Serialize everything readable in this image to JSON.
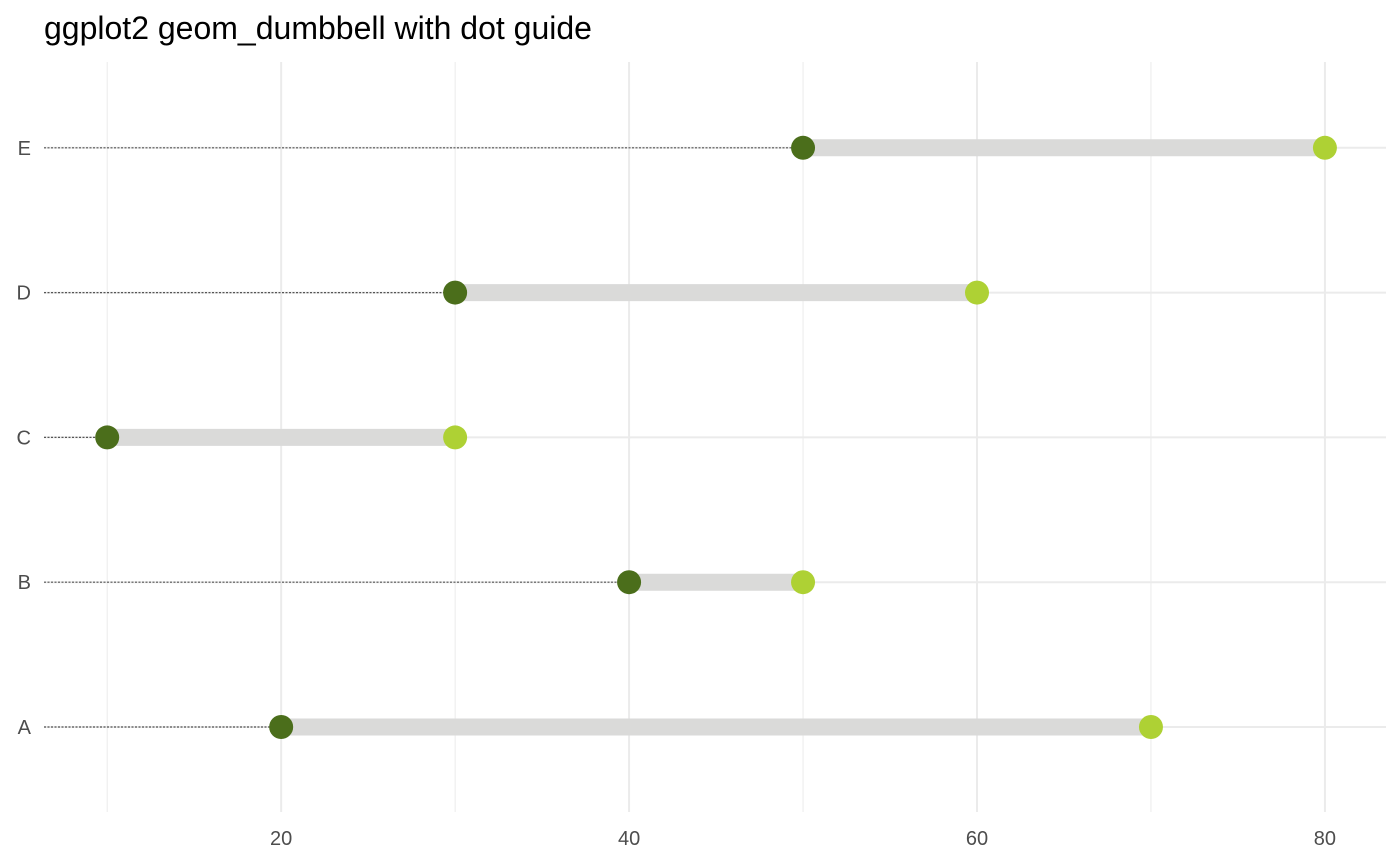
{
  "chart_data": {
    "type": "dumbbell",
    "title": "ggplot2 geom_dumbbell with dot guide",
    "xlabel": "",
    "ylabel": "",
    "categories": [
      "A",
      "B",
      "C",
      "D",
      "E"
    ],
    "series": [
      {
        "start": 20,
        "end": 70
      },
      {
        "start": 40,
        "end": 50
      },
      {
        "start": 10,
        "end": 30
      },
      {
        "start": 30,
        "end": 60
      },
      {
        "start": 50,
        "end": 80
      }
    ],
    "x_ticks": [
      20,
      40,
      60,
      80
    ],
    "xlim": [
      6.5,
      83.5
    ],
    "grid": true,
    "dot_guide": true,
    "colors": {
      "start_dot": "#4b6e1b",
      "end_dot": "#aed134",
      "bar": "#dadad9",
      "grid": "#ebebeb",
      "guide": "#555555",
      "tick_text": "#4d4d4d"
    }
  }
}
